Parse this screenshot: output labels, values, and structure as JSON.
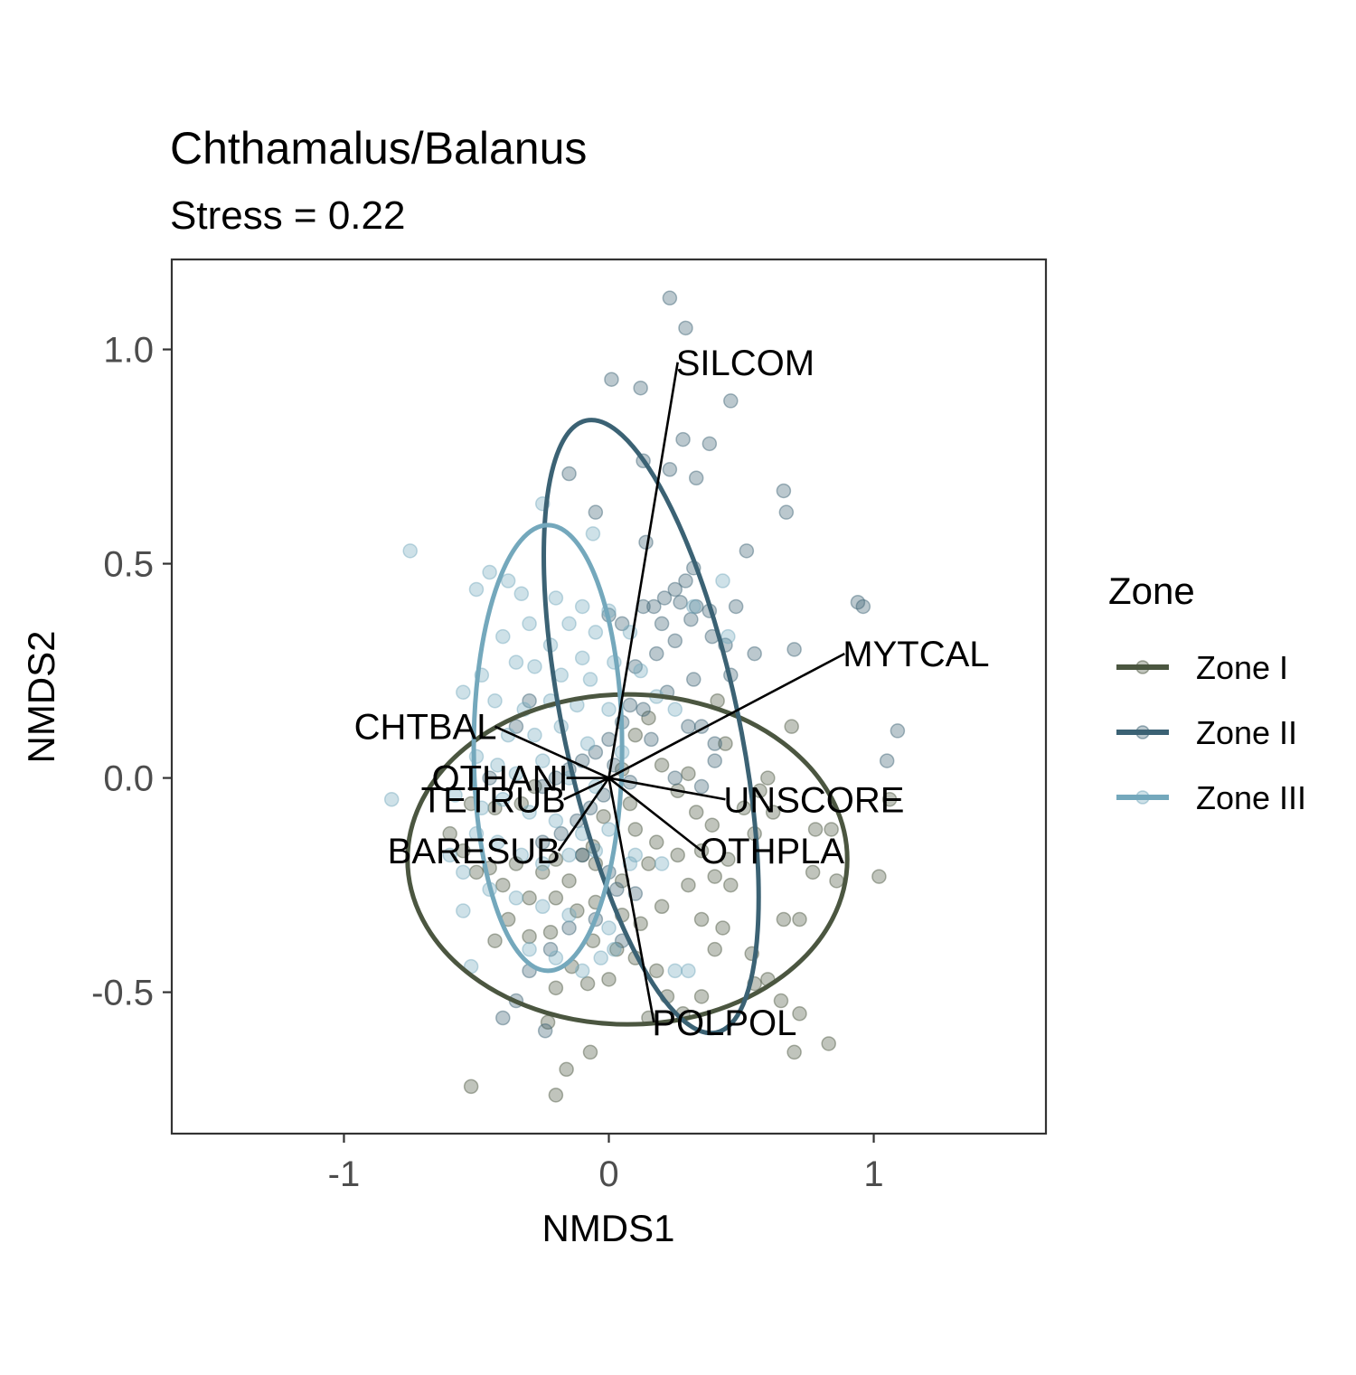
{
  "chart_data": {
    "type": "scatter",
    "title": "Chthamalus/Balanus",
    "subtitle": "Stress = 0.22",
    "xlabel": "NMDS1",
    "ylabel": "NMDS2",
    "xlim": [
      -1.65,
      1.65
    ],
    "ylim": [
      -0.83,
      1.21
    ],
    "x_ticks": [
      {
        "value": -1,
        "label": "-1"
      },
      {
        "value": 0,
        "label": "0"
      },
      {
        "value": 1,
        "label": "1"
      }
    ],
    "y_ticks": [
      {
        "value": -0.5,
        "label": "-0.5"
      },
      {
        "value": 0,
        "label": "0.0"
      },
      {
        "value": 0.5,
        "label": "0.5"
      },
      {
        "value": 1,
        "label": "1.0"
      }
    ],
    "grid": false,
    "legend": {
      "title": "Zone",
      "position": "right"
    },
    "series": [
      {
        "name": "Zone I",
        "color": "#4b5640",
        "ellipse": {
          "cx": 0.07,
          "cy": -0.19,
          "rx": 0.83,
          "ry": 0.385,
          "angle": 0
        },
        "points": [
          [
            0.69,
            0.12
          ],
          [
            0.44,
            0.08
          ],
          [
            0.6,
            0.0
          ],
          [
            0.3,
            0.01
          ],
          [
            0.51,
            -0.07
          ],
          [
            0.62,
            -0.08
          ],
          [
            0.78,
            -0.12
          ],
          [
            0.84,
            -0.12
          ],
          [
            1.06,
            -0.05
          ],
          [
            0.39,
            -0.11
          ],
          [
            0.55,
            -0.13
          ],
          [
            0.33,
            -0.08
          ],
          [
            0.26,
            -0.18
          ],
          [
            0.18,
            -0.15
          ],
          [
            0.1,
            -0.12
          ],
          [
            0.45,
            -0.19
          ],
          [
            0.4,
            -0.23
          ],
          [
            0.3,
            -0.25
          ],
          [
            0.15,
            -0.2
          ],
          [
            0.05,
            -0.24
          ],
          [
            -0.05,
            -0.2
          ],
          [
            -0.1,
            -0.18
          ],
          [
            -0.15,
            -0.24
          ],
          [
            -0.2,
            -0.19
          ],
          [
            -0.25,
            -0.22
          ],
          [
            -0.3,
            -0.28
          ],
          [
            -0.35,
            -0.2
          ],
          [
            -0.4,
            -0.25
          ],
          [
            -0.45,
            -0.21
          ],
          [
            -0.5,
            -0.22
          ],
          [
            -0.55,
            -0.17
          ],
          [
            -0.6,
            -0.13
          ],
          [
            -0.2,
            -0.28
          ],
          [
            -0.12,
            -0.31
          ],
          [
            -0.05,
            -0.29
          ],
          [
            0.05,
            -0.32
          ],
          [
            0.12,
            -0.34
          ],
          [
            0.2,
            -0.3
          ],
          [
            0.35,
            -0.33
          ],
          [
            0.43,
            -0.35
          ],
          [
            0.54,
            -0.41
          ],
          [
            0.66,
            -0.33
          ],
          [
            0.72,
            -0.33
          ],
          [
            0.77,
            -0.22
          ],
          [
            0.86,
            -0.24
          ],
          [
            1.02,
            -0.23
          ],
          [
            -0.06,
            -0.38
          ],
          [
            0.03,
            -0.4
          ],
          [
            0.1,
            -0.42
          ],
          [
            -0.14,
            -0.44
          ],
          [
            -0.22,
            -0.36
          ],
          [
            -0.3,
            -0.37
          ],
          [
            -0.38,
            -0.33
          ],
          [
            -0.43,
            -0.38
          ],
          [
            0.0,
            -0.47
          ],
          [
            -0.08,
            -0.48
          ],
          [
            -0.2,
            -0.49
          ],
          [
            0.18,
            -0.45
          ],
          [
            0.22,
            -0.51
          ],
          [
            0.28,
            -0.55
          ],
          [
            0.55,
            -0.48
          ],
          [
            0.6,
            -0.47
          ],
          [
            0.65,
            -0.52
          ],
          [
            0.72,
            -0.55
          ],
          [
            0.83,
            -0.62
          ],
          [
            0.7,
            -0.64
          ],
          [
            0.35,
            -0.51
          ],
          [
            0.15,
            -0.56
          ],
          [
            -0.07,
            -0.64
          ],
          [
            -0.16,
            -0.68
          ],
          [
            -0.2,
            -0.74
          ],
          [
            -0.52,
            -0.72
          ],
          [
            -0.23,
            -0.57
          ],
          [
            0.4,
            -0.4
          ],
          [
            0.26,
            -0.03
          ],
          [
            0.2,
            0.03
          ],
          [
            0.1,
            0.1
          ],
          [
            0.15,
            0.14
          ],
          [
            0.41,
            0.18
          ],
          [
            0.57,
            -0.03
          ],
          [
            0.46,
            -0.25
          ],
          [
            0.35,
            -0.17
          ],
          [
            -0.06,
            -0.16
          ],
          [
            -0.02,
            -0.09
          ],
          [
            0.08,
            -0.06
          ],
          [
            -0.28,
            -0.02
          ],
          [
            -0.33,
            -0.06
          ],
          [
            -0.43,
            -0.07
          ],
          [
            -0.52,
            -0.06
          ],
          [
            0.05,
            0.02
          ]
        ]
      },
      {
        "name": "Zone II",
        "color": "#3b6274",
        "ellipse": {
          "cx": 0.16,
          "cy": 0.12,
          "rx": 0.33,
          "ry": 0.73,
          "angle": -12
        },
        "points": [
          [
            0.23,
            1.12
          ],
          [
            0.29,
            1.05
          ],
          [
            0.01,
            0.93
          ],
          [
            0.12,
            0.91
          ],
          [
            0.46,
            0.88
          ],
          [
            0.28,
            0.79
          ],
          [
            0.38,
            0.78
          ],
          [
            0.13,
            0.74
          ],
          [
            0.23,
            0.72
          ],
          [
            0.33,
            0.7
          ],
          [
            -0.15,
            0.71
          ],
          [
            0.66,
            0.67
          ],
          [
            0.67,
            0.62
          ],
          [
            -0.05,
            0.62
          ],
          [
            0.14,
            0.55
          ],
          [
            0.52,
            0.53
          ],
          [
            0.32,
            0.49
          ],
          [
            0.29,
            0.46
          ],
          [
            0.25,
            0.44
          ],
          [
            0.21,
            0.42
          ],
          [
            0.27,
            0.41
          ],
          [
            0.33,
            0.4
          ],
          [
            0.38,
            0.39
          ],
          [
            0.17,
            0.4
          ],
          [
            0.13,
            0.4
          ],
          [
            0.05,
            0.36
          ],
          [
            0.0,
            0.38
          ],
          [
            0.2,
            0.36
          ],
          [
            0.31,
            0.37
          ],
          [
            0.39,
            0.33
          ],
          [
            0.25,
            0.32
          ],
          [
            0.18,
            0.29
          ],
          [
            0.1,
            0.26
          ],
          [
            0.44,
            0.31
          ],
          [
            0.55,
            0.29
          ],
          [
            0.46,
            0.24
          ],
          [
            0.32,
            0.23
          ],
          [
            0.22,
            0.2
          ],
          [
            0.13,
            0.16
          ],
          [
            0.05,
            0.13
          ],
          [
            0.0,
            0.09
          ],
          [
            -0.05,
            0.06
          ],
          [
            -0.1,
            0.04
          ],
          [
            -0.15,
            0.02
          ],
          [
            -0.2,
            0.0
          ],
          [
            -0.25,
            -0.02
          ],
          [
            0.3,
            0.12
          ],
          [
            0.4,
            0.08
          ],
          [
            0.35,
            -0.02
          ],
          [
            0.08,
            -0.01
          ],
          [
            0.02,
            0.03
          ],
          [
            -0.02,
            -0.04
          ],
          [
            -0.07,
            -0.07
          ],
          [
            -0.12,
            -0.1
          ],
          [
            -0.18,
            -0.13
          ],
          [
            -0.25,
            -0.15
          ],
          [
            -0.1,
            -0.18
          ],
          [
            0.0,
            -0.22
          ],
          [
            0.03,
            -0.26
          ],
          [
            0.1,
            -0.27
          ],
          [
            -0.05,
            -0.33
          ],
          [
            -0.15,
            -0.35
          ],
          [
            -0.22,
            -0.4
          ],
          [
            0.05,
            -0.38
          ],
          [
            -0.3,
            -0.45
          ],
          [
            -0.35,
            -0.52
          ],
          [
            -0.4,
            -0.56
          ],
          [
            -0.24,
            -0.59
          ],
          [
            0.96,
            0.4
          ],
          [
            0.94,
            0.41
          ],
          [
            1.09,
            0.11
          ],
          [
            1.05,
            0.04
          ],
          [
            0.16,
            0.09
          ],
          [
            0.25,
            0.0
          ],
          [
            -0.35,
            0.12
          ],
          [
            -0.45,
            0.0
          ],
          [
            -0.3,
            0.18
          ],
          [
            0.08,
            0.17
          ],
          [
            0.7,
            0.3
          ],
          [
            0.48,
            0.4
          ],
          [
            0.35,
            0.12
          ],
          [
            0.4,
            0.04
          ]
        ]
      },
      {
        "name": "Zone III",
        "color": "#74a8bc",
        "ellipse": {
          "cx": -0.23,
          "cy": 0.07,
          "rx": 0.28,
          "ry": 0.52,
          "angle": 0
        },
        "points": [
          [
            -0.75,
            0.53
          ],
          [
            -0.06,
            0.57
          ],
          [
            -0.25,
            0.64
          ],
          [
            -0.45,
            0.48
          ],
          [
            -0.38,
            0.46
          ],
          [
            -0.33,
            0.43
          ],
          [
            -0.2,
            0.42
          ],
          [
            -0.1,
            0.4
          ],
          [
            0.0,
            0.39
          ],
          [
            -0.5,
            0.44
          ],
          [
            -0.3,
            0.36
          ],
          [
            -0.15,
            0.36
          ],
          [
            -0.05,
            0.34
          ],
          [
            0.08,
            0.34
          ],
          [
            -0.4,
            0.33
          ],
          [
            -0.22,
            0.31
          ],
          [
            -0.1,
            0.28
          ],
          [
            0.02,
            0.27
          ],
          [
            -0.48,
            0.24
          ],
          [
            -0.35,
            0.27
          ],
          [
            -0.28,
            0.26
          ],
          [
            -0.18,
            0.24
          ],
          [
            -0.07,
            0.23
          ],
          [
            0.12,
            0.25
          ],
          [
            -0.55,
            0.2
          ],
          [
            -0.43,
            0.18
          ],
          [
            -0.32,
            0.16
          ],
          [
            -0.22,
            0.18
          ],
          [
            -0.12,
            0.17
          ],
          [
            0.0,
            0.16
          ],
          [
            0.18,
            0.19
          ],
          [
            0.25,
            0.16
          ],
          [
            -0.38,
            0.1
          ],
          [
            -0.28,
            0.1
          ],
          [
            -0.18,
            0.12
          ],
          [
            -0.08,
            0.08
          ],
          [
            0.05,
            0.06
          ],
          [
            -0.5,
            0.05
          ],
          [
            -0.42,
            0.03
          ],
          [
            -0.35,
            0.01
          ],
          [
            -0.25,
            0.04
          ],
          [
            -0.15,
            0.0
          ],
          [
            -0.05,
            -0.02
          ],
          [
            -0.58,
            -0.04
          ],
          [
            -0.48,
            -0.07
          ],
          [
            -0.4,
            -0.05
          ],
          [
            -0.3,
            -0.08
          ],
          [
            -0.2,
            -0.1
          ],
          [
            -0.1,
            -0.13
          ],
          [
            0.0,
            -0.12
          ],
          [
            -0.5,
            -0.13
          ],
          [
            -0.42,
            -0.15
          ],
          [
            -0.33,
            -0.18
          ],
          [
            -0.25,
            -0.2
          ],
          [
            -0.15,
            -0.18
          ],
          [
            -0.05,
            -0.17
          ],
          [
            0.1,
            -0.18
          ],
          [
            0.2,
            -0.2
          ],
          [
            -0.55,
            -0.22
          ],
          [
            -0.45,
            -0.26
          ],
          [
            -0.35,
            -0.28
          ],
          [
            -0.25,
            -0.3
          ],
          [
            -0.15,
            -0.32
          ],
          [
            0.0,
            -0.35
          ],
          [
            -0.3,
            -0.4
          ],
          [
            -0.2,
            -0.42
          ],
          [
            -0.1,
            -0.45
          ],
          [
            0.02,
            -0.4
          ],
          [
            -0.55,
            -0.31
          ],
          [
            -0.52,
            -0.44
          ],
          [
            0.45,
            0.33
          ],
          [
            0.32,
            0.4
          ],
          [
            0.43,
            0.46
          ],
          [
            0.3,
            -0.45
          ],
          [
            -0.82,
            -0.05
          ],
          [
            -0.6,
            -0.18
          ],
          [
            0.08,
            -0.2
          ],
          [
            -0.03,
            -0.42
          ],
          [
            0.25,
            -0.45
          ]
        ]
      }
    ],
    "vectors": [
      {
        "name": "SILCOM",
        "x": 0.26,
        "y": 0.97
      },
      {
        "name": "MYTCAL",
        "x": 0.89,
        "y": 0.29
      },
      {
        "name": "CHTBAL",
        "x": -0.43,
        "y": 0.12
      },
      {
        "name": "OTHANI",
        "x": -0.16,
        "y": 0.0
      },
      {
        "name": "TETRUB",
        "x": -0.17,
        "y": -0.05
      },
      {
        "name": "BARESUB",
        "x": -0.19,
        "y": -0.17
      },
      {
        "name": "UNSCORE",
        "x": 0.44,
        "y": -0.05
      },
      {
        "name": "OTHPLA",
        "x": 0.35,
        "y": -0.17
      },
      {
        "name": "POLPOL",
        "x": 0.17,
        "y": -0.57
      }
    ]
  }
}
